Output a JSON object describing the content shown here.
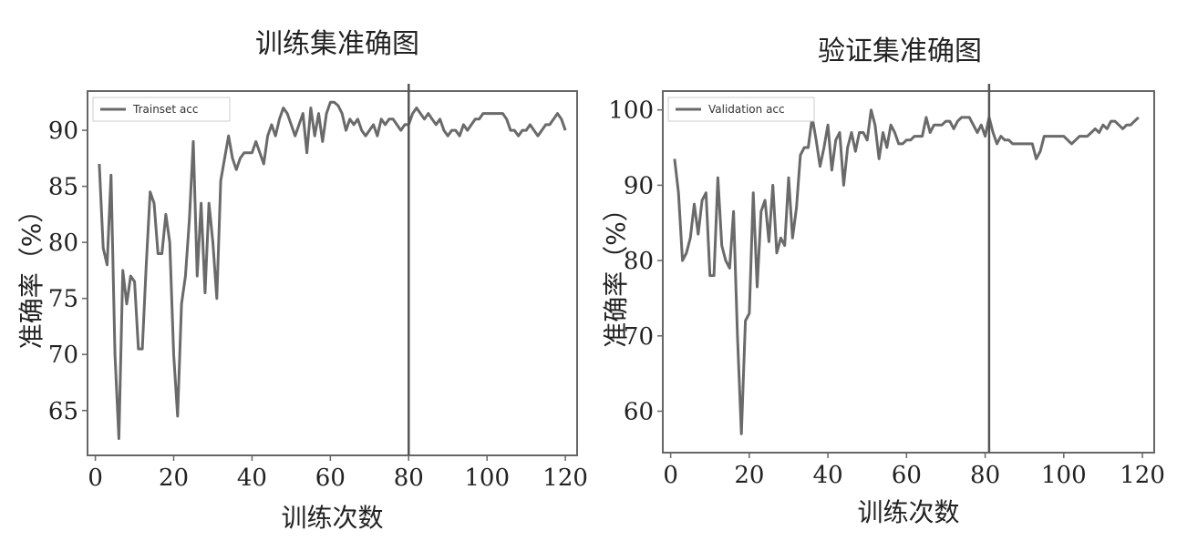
{
  "chart_data": [
    {
      "type": "line",
      "title": "训练集准确图",
      "xlabel": "训练次数",
      "ylabel": "准确率（%）",
      "xlim": [
        -2,
        123
      ],
      "ylim": [
        61,
        93.5
      ],
      "xticks": [
        0,
        20,
        40,
        60,
        80,
        100,
        120
      ],
      "yticks": [
        65,
        70,
        75,
        80,
        85,
        90
      ],
      "legend": "top-left",
      "grid": false,
      "vline": 80,
      "series": [
        {
          "name": "Trainset acc",
          "x": [
            1,
            2,
            3,
            4,
            5,
            6,
            7,
            8,
            9,
            10,
            11,
            12,
            13,
            14,
            15,
            16,
            17,
            18,
            19,
            20,
            21,
            22,
            23,
            24,
            25,
            26,
            27,
            28,
            29,
            30,
            31,
            32,
            33,
            34,
            35,
            36,
            37,
            38,
            39,
            40,
            41,
            42,
            43,
            44,
            45,
            46,
            47,
            48,
            49,
            50,
            51,
            52,
            53,
            54,
            55,
            56,
            57,
            58,
            59,
            60,
            61,
            62,
            63,
            64,
            65,
            66,
            67,
            68,
            69,
            70,
            71,
            72,
            73,
            74,
            75,
            76,
            77,
            78,
            79,
            80,
            81,
            82,
            83,
            84,
            85,
            86,
            87,
            88,
            89,
            90,
            91,
            92,
            93,
            94,
            95,
            96,
            97,
            98,
            99,
            100,
            101,
            102,
            103,
            104,
            105,
            106,
            107,
            108,
            109,
            110,
            111,
            112,
            113,
            114,
            115,
            116,
            117,
            118,
            119,
            120
          ],
          "values": [
            87,
            79.5,
            78,
            86,
            70,
            62.5,
            77.5,
            74.5,
            77,
            76.5,
            70.5,
            70.5,
            78,
            84.5,
            83.5,
            79,
            79,
            82.5,
            80,
            70,
            64.5,
            74.5,
            77,
            82,
            89,
            77,
            83.5,
            75.5,
            83.5,
            80,
            75,
            85.5,
            87.5,
            89.5,
            87.5,
            86.5,
            87.5,
            88,
            88,
            88,
            89,
            88,
            87,
            89.5,
            90.5,
            89.5,
            91,
            92,
            91.5,
            90.5,
            89.5,
            90.5,
            91.5,
            88,
            92,
            89.5,
            91.5,
            89,
            91.5,
            92.5,
            92.5,
            92.2,
            91.5,
            90,
            91,
            90.5,
            91,
            90,
            89.5,
            90,
            90.5,
            89.5,
            91,
            90.5,
            91,
            91,
            90.5,
            90,
            90.5,
            90.5,
            91.5,
            92,
            91.5,
            91,
            91.5,
            91,
            90.5,
            91,
            90,
            89.5,
            90,
            90,
            89.5,
            90.5,
            90,
            90.5,
            91,
            91,
            91.5,
            91.5,
            91.5,
            91.5,
            91.5,
            91.5,
            91,
            90,
            90,
            89.5,
            90,
            90,
            90.5,
            90,
            89.5,
            90,
            90.5,
            90.5,
            91,
            91.5,
            91,
            90
          ]
        }
      ]
    },
    {
      "type": "line",
      "title": "验证集准确图",
      "xlabel": "训练次数",
      "ylabel": "准确率（%）",
      "xlim": [
        -2,
        123
      ],
      "ylim": [
        54.5,
        102.5
      ],
      "xticks": [
        0,
        20,
        40,
        60,
        80,
        100,
        120
      ],
      "yticks": [
        60,
        70,
        80,
        90,
        100
      ],
      "legend": "top-left",
      "grid": false,
      "vline": 81,
      "series": [
        {
          "name": "Validation acc",
          "x": [
            1,
            2,
            3,
            4,
            5,
            6,
            7,
            8,
            9,
            10,
            11,
            12,
            13,
            14,
            15,
            16,
            17,
            18,
            19,
            20,
            21,
            22,
            23,
            24,
            25,
            26,
            27,
            28,
            29,
            30,
            31,
            32,
            33,
            34,
            35,
            36,
            37,
            38,
            39,
            40,
            41,
            42,
            43,
            44,
            45,
            46,
            47,
            48,
            49,
            50,
            51,
            52,
            53,
            54,
            55,
            56,
            57,
            58,
            59,
            60,
            61,
            62,
            63,
            64,
            65,
            66,
            67,
            68,
            69,
            70,
            71,
            72,
            73,
            74,
            75,
            76,
            77,
            78,
            79,
            80,
            81,
            82,
            83,
            84,
            85,
            86,
            87,
            88,
            89,
            90,
            91,
            92,
            93,
            94,
            95,
            96,
            97,
            98,
            99,
            100,
            101,
            102,
            103,
            104,
            105,
            106,
            107,
            108,
            109,
            110,
            111,
            112,
            113,
            114,
            115,
            116,
            117,
            118,
            119
          ],
          "values": [
            93.5,
            89,
            80,
            81,
            83,
            87.5,
            83.5,
            88,
            89,
            78,
            78,
            91,
            82,
            80,
            79,
            86.5,
            70,
            57,
            72,
            73,
            89,
            76.5,
            86.5,
            88,
            82.5,
            90,
            81,
            83,
            82,
            91,
            83,
            87,
            94,
            95,
            95,
            99,
            96,
            92.5,
            95,
            98,
            92,
            96,
            97,
            90,
            95,
            97,
            94.5,
            97,
            97,
            96,
            100,
            98,
            93.5,
            97,
            95,
            98,
            97,
            95.5,
            95.5,
            96,
            96,
            96.5,
            96.5,
            96.5,
            99,
            97,
            98,
            98,
            98,
            98.5,
            98.5,
            97.5,
            98.5,
            99,
            99,
            99,
            98,
            97,
            98,
            96.5,
            99,
            97,
            95.5,
            96.5,
            96,
            96,
            95.5,
            95.5,
            95.5,
            95.5,
            95.5,
            95.5,
            93.5,
            94.5,
            96.5,
            96.5,
            96.5,
            96.5,
            96.5,
            96.5,
            96,
            95.5,
            96,
            96.5,
            96.5,
            96.5,
            97,
            97.5,
            97,
            98,
            97.5,
            98.5,
            98.5,
            98,
            97.5,
            98,
            98,
            98.5,
            99
          ]
        }
      ]
    }
  ]
}
